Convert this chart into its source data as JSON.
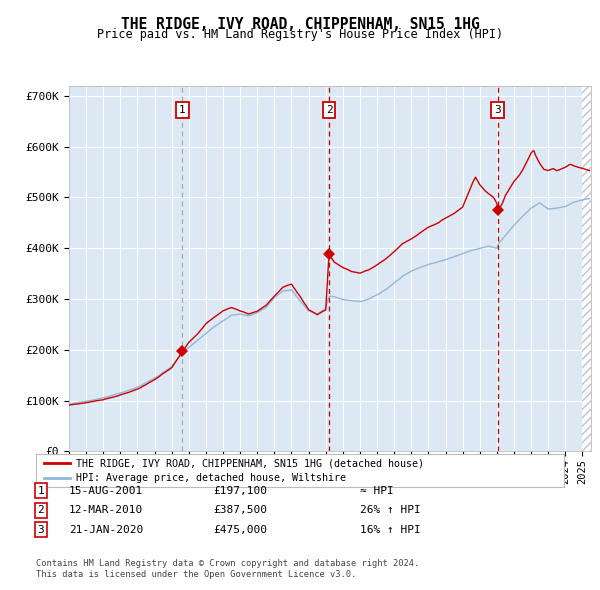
{
  "title": "THE RIDGE, IVY ROAD, CHIPPENHAM, SN15 1HG",
  "subtitle": "Price paid vs. HM Land Registry's House Price Index (HPI)",
  "legend_line1": "THE RIDGE, IVY ROAD, CHIPPENHAM, SN15 1HG (detached house)",
  "legend_line2": "HPI: Average price, detached house, Wiltshire",
  "footnote1": "Contains HM Land Registry data © Crown copyright and database right 2024.",
  "footnote2": "This data is licensed under the Open Government Licence v3.0.",
  "transactions": [
    {
      "num": 1,
      "date": "15-AUG-2001",
      "price": 197100,
      "rel": "≈ HPI",
      "x": 2001.619
    },
    {
      "num": 2,
      "date": "12-MAR-2010",
      "price": 387500,
      "rel": "26% ↑ HPI",
      "x": 2010.192
    },
    {
      "num": 3,
      "date": "21-JAN-2020",
      "price": 475000,
      "rel": "16% ↑ HPI",
      "x": 2020.055
    }
  ],
  "hpi_color": "#92b8d8",
  "price_color": "#cc0000",
  "bg_color": "#dce9f5",
  "grid_color": "#ffffff",
  "ylim": [
    0,
    720000
  ],
  "xlim_start": 1995.0,
  "xlim_end": 2025.5,
  "yticks": [
    0,
    100000,
    200000,
    300000,
    400000,
    500000,
    600000,
    700000
  ],
  "ytick_labels": [
    "£0",
    "£100K",
    "£200K",
    "£300K",
    "£400K",
    "£500K",
    "£600K",
    "£700K"
  ],
  "hpi_anchors": [
    [
      1995.0,
      93000
    ],
    [
      1996.0,
      98000
    ],
    [
      1997.0,
      106000
    ],
    [
      1998.0,
      116000
    ],
    [
      1999.0,
      128000
    ],
    [
      2000.0,
      146000
    ],
    [
      2001.0,
      168000
    ],
    [
      2001.619,
      196000
    ],
    [
      2002.5,
      220000
    ],
    [
      2003.5,
      248000
    ],
    [
      2004.5,
      270000
    ],
    [
      2005.0,
      272000
    ],
    [
      2005.5,
      268000
    ],
    [
      2006.0,
      275000
    ],
    [
      2006.5,
      285000
    ],
    [
      2007.0,
      305000
    ],
    [
      2007.5,
      318000
    ],
    [
      2008.0,
      320000
    ],
    [
      2008.5,
      298000
    ],
    [
      2009.0,
      278000
    ],
    [
      2009.5,
      272000
    ],
    [
      2010.0,
      282000
    ],
    [
      2010.192,
      307000
    ],
    [
      2010.5,
      305000
    ],
    [
      2011.0,
      300000
    ],
    [
      2011.5,
      298000
    ],
    [
      2012.0,
      296000
    ],
    [
      2012.5,
      300000
    ],
    [
      2013.0,
      308000
    ],
    [
      2013.5,
      318000
    ],
    [
      2014.0,
      332000
    ],
    [
      2014.5,
      345000
    ],
    [
      2015.0,
      355000
    ],
    [
      2015.5,
      362000
    ],
    [
      2016.0,
      368000
    ],
    [
      2016.5,
      372000
    ],
    [
      2017.0,
      378000
    ],
    [
      2017.5,
      384000
    ],
    [
      2018.0,
      390000
    ],
    [
      2018.5,
      396000
    ],
    [
      2019.0,
      400000
    ],
    [
      2019.5,
      405000
    ],
    [
      2020.0,
      400000
    ],
    [
      2020.055,
      408000
    ],
    [
      2020.5,
      425000
    ],
    [
      2021.0,
      445000
    ],
    [
      2021.5,
      462000
    ],
    [
      2022.0,
      478000
    ],
    [
      2022.5,
      488000
    ],
    [
      2022.75,
      482000
    ],
    [
      2023.0,
      476000
    ],
    [
      2023.5,
      478000
    ],
    [
      2024.0,
      482000
    ],
    [
      2024.5,
      490000
    ],
    [
      2025.0,
      495000
    ],
    [
      2025.4,
      497000
    ]
  ],
  "red_anchors": [
    [
      1995.0,
      91000
    ],
    [
      1996.0,
      96000
    ],
    [
      1997.0,
      103000
    ],
    [
      1998.0,
      113000
    ],
    [
      1999.0,
      125000
    ],
    [
      2000.0,
      144000
    ],
    [
      2001.0,
      166000
    ],
    [
      2001.619,
      197100
    ],
    [
      2002.0,
      215000
    ],
    [
      2002.5,
      232000
    ],
    [
      2003.0,
      252000
    ],
    [
      2003.5,
      265000
    ],
    [
      2004.0,
      278000
    ],
    [
      2004.5,
      285000
    ],
    [
      2005.0,
      278000
    ],
    [
      2005.5,
      272000
    ],
    [
      2006.0,
      278000
    ],
    [
      2006.5,
      288000
    ],
    [
      2007.0,
      308000
    ],
    [
      2007.5,
      325000
    ],
    [
      2008.0,
      330000
    ],
    [
      2008.5,
      305000
    ],
    [
      2009.0,
      278000
    ],
    [
      2009.5,
      268000
    ],
    [
      2010.0,
      278000
    ],
    [
      2010.192,
      387500
    ],
    [
      2010.5,
      372000
    ],
    [
      2011.0,
      362000
    ],
    [
      2011.5,
      355000
    ],
    [
      2012.0,
      352000
    ],
    [
      2012.5,
      358000
    ],
    [
      2013.0,
      368000
    ],
    [
      2013.5,
      380000
    ],
    [
      2014.0,
      395000
    ],
    [
      2014.5,
      410000
    ],
    [
      2015.0,
      420000
    ],
    [
      2015.5,
      432000
    ],
    [
      2016.0,
      445000
    ],
    [
      2016.5,
      452000
    ],
    [
      2017.0,
      462000
    ],
    [
      2017.5,
      472000
    ],
    [
      2018.0,
      485000
    ],
    [
      2018.3,
      510000
    ],
    [
      2018.6,
      535000
    ],
    [
      2018.75,
      545000
    ],
    [
      2019.0,
      530000
    ],
    [
      2019.3,
      518000
    ],
    [
      2019.5,
      512000
    ],
    [
      2019.8,
      505000
    ],
    [
      2020.0,
      492000
    ],
    [
      2020.055,
      475000
    ],
    [
      2020.3,
      490000
    ],
    [
      2020.5,
      508000
    ],
    [
      2021.0,
      535000
    ],
    [
      2021.3,
      548000
    ],
    [
      2021.5,
      558000
    ],
    [
      2021.75,
      575000
    ],
    [
      2022.0,
      592000
    ],
    [
      2022.15,
      598000
    ],
    [
      2022.25,
      588000
    ],
    [
      2022.5,
      572000
    ],
    [
      2022.75,
      560000
    ],
    [
      2023.0,
      558000
    ],
    [
      2023.3,
      562000
    ],
    [
      2023.5,
      558000
    ],
    [
      2024.0,
      565000
    ],
    [
      2024.3,
      572000
    ],
    [
      2024.5,
      568000
    ],
    [
      2025.0,
      562000
    ],
    [
      2025.4,
      558000
    ]
  ]
}
